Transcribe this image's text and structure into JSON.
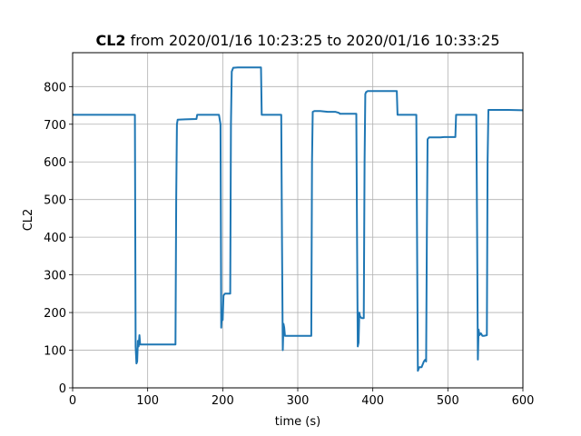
{
  "chart_data": {
    "type": "line",
    "title_bold": "CL2",
    "title_rest": " from 2020/01/16 10:23:25 to 2020/01/16 10:33:25",
    "xlabel": "time (s)",
    "ylabel": "CL2",
    "xlim": [
      0,
      600
    ],
    "ylim": [
      0,
      890
    ],
    "xticks": [
      0,
      100,
      200,
      300,
      400,
      500,
      600
    ],
    "yticks": [
      0,
      100,
      200,
      300,
      400,
      500,
      600,
      700,
      800
    ],
    "grid": true,
    "series": [
      {
        "color": "#1f77b4",
        "x": [
          0,
          83,
          84,
          85,
          86,
          87,
          88,
          89,
          90,
          91,
          100,
          137,
          138,
          139,
          140,
          150,
          165,
          166,
          175,
          195,
          197,
          198,
          199,
          200,
          201,
          203,
          210,
          211,
          212,
          214,
          220,
          240,
          251,
          252,
          260,
          278,
          279,
          280,
          281,
          282,
          283,
          285,
          300,
          318,
          319,
          320,
          322,
          330,
          340,
          350,
          355,
          356,
          360,
          378,
          379,
          380,
          381,
          382,
          383,
          385,
          388,
          389,
          390,
          391,
          393,
          400,
          410,
          432,
          433,
          440,
          458,
          459,
          460,
          461,
          462,
          465,
          468,
          470,
          471,
          472,
          473,
          475,
          485,
          490,
          495,
          510,
          511,
          515,
          538,
          539,
          540,
          541,
          542,
          544,
          546,
          548,
          552,
          553,
          554,
          560,
          580,
          600
        ],
        "y": [
          725,
          725,
          110,
          65,
          70,
          125,
          110,
          140,
          115,
          115,
          115,
          115,
          500,
          700,
          712,
          713,
          714,
          725,
          725,
          725,
          700,
          160,
          200,
          180,
          245,
          250,
          250,
          700,
          840,
          850,
          851,
          851,
          851,
          725,
          725,
          725,
          400,
          100,
          170,
          160,
          138,
          138,
          138,
          138,
          600,
          733,
          735,
          735,
          733,
          733,
          730,
          728,
          728,
          728,
          400,
          110,
          120,
          200,
          190,
          185,
          185,
          600,
          780,
          785,
          788,
          788,
          788,
          788,
          725,
          725,
          725,
          400,
          45,
          50,
          55,
          55,
          70,
          75,
          70,
          400,
          660,
          665,
          665,
          665,
          666,
          666,
          725,
          725,
          725,
          400,
          75,
          155,
          140,
          145,
          138,
          138,
          140,
          600,
          738,
          738,
          738,
          737
        ]
      }
    ]
  }
}
